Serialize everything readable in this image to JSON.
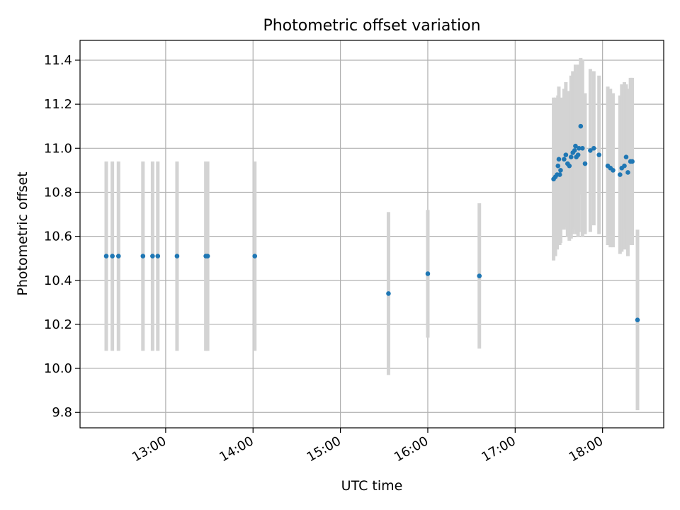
{
  "chart_data": {
    "type": "scatter",
    "title": "Photometric offset variation",
    "xlabel": "UTC time",
    "ylabel": "Photometric offset",
    "x_unit": "hours UTC",
    "xlim": [
      12.02,
      18.7
    ],
    "ylim": [
      9.73,
      11.49
    ],
    "x_ticks": [
      {
        "value": 13,
        "label": "13:00"
      },
      {
        "value": 14,
        "label": "14:00"
      },
      {
        "value": 15,
        "label": "15:00"
      },
      {
        "value": 16,
        "label": "16:00"
      },
      {
        "value": 17,
        "label": "17:00"
      },
      {
        "value": 18,
        "label": "18:00"
      }
    ],
    "y_ticks": [
      {
        "value": 9.8,
        "label": "9.8"
      },
      {
        "value": 10.0,
        "label": "10.0"
      },
      {
        "value": 10.2,
        "label": "10.2"
      },
      {
        "value": 10.4,
        "label": "10.4"
      },
      {
        "value": 10.6,
        "label": "10.6"
      },
      {
        "value": 10.8,
        "label": "10.8"
      },
      {
        "value": 11.0,
        "label": "11.0"
      },
      {
        "value": 11.2,
        "label": "11.2"
      },
      {
        "value": 11.4,
        "label": "11.4"
      }
    ],
    "grid": true,
    "colors": {
      "points": "#1f77b4",
      "errorbars": "#d3d3d3",
      "grid": "#b0b0b0"
    },
    "series": [
      {
        "x": [
          12.32,
          12.39,
          12.46,
          12.74,
          12.85,
          12.91,
          13.13,
          13.46,
          13.48,
          14.02,
          15.55,
          16.0,
          16.59,
          17.44,
          17.46,
          17.48,
          17.49,
          17.5,
          17.51,
          17.52,
          17.56,
          17.58,
          17.6,
          17.62,
          17.64,
          17.66,
          17.68,
          17.69,
          17.7,
          17.72,
          17.73,
          17.75,
          17.77,
          17.8,
          17.86,
          17.9,
          17.96,
          18.06,
          18.09,
          18.12,
          18.2,
          18.22,
          18.25,
          18.27,
          18.29,
          18.32,
          18.34,
          18.4
        ],
        "y": [
          10.51,
          10.51,
          10.51,
          10.51,
          10.51,
          10.51,
          10.51,
          10.51,
          10.51,
          10.51,
          10.34,
          10.43,
          10.42,
          10.86,
          10.87,
          10.88,
          10.92,
          10.95,
          10.88,
          10.9,
          10.95,
          10.97,
          10.93,
          10.92,
          10.96,
          10.98,
          10.99,
          11.01,
          10.96,
          10.97,
          11.0,
          11.1,
          11.0,
          10.93,
          10.99,
          11.0,
          10.97,
          10.92,
          10.91,
          10.9,
          10.88,
          10.91,
          10.92,
          10.96,
          10.89,
          10.94,
          10.94,
          10.22
        ],
        "err": [
          0.43,
          0.43,
          0.43,
          0.43,
          0.43,
          0.43,
          0.43,
          0.43,
          0.43,
          0.43,
          0.37,
          0.29,
          0.33,
          0.37,
          0.36,
          0.34,
          0.32,
          0.33,
          0.32,
          0.33,
          0.32,
          0.33,
          0.33,
          0.34,
          0.37,
          0.37,
          0.36,
          0.37,
          0.35,
          0.37,
          0.38,
          0.31,
          0.4,
          0.32,
          0.37,
          0.35,
          0.36,
          0.36,
          0.36,
          0.35,
          0.36,
          0.38,
          0.38,
          0.33,
          0.38,
          0.38,
          0.38,
          0.41
        ]
      }
    ]
  }
}
